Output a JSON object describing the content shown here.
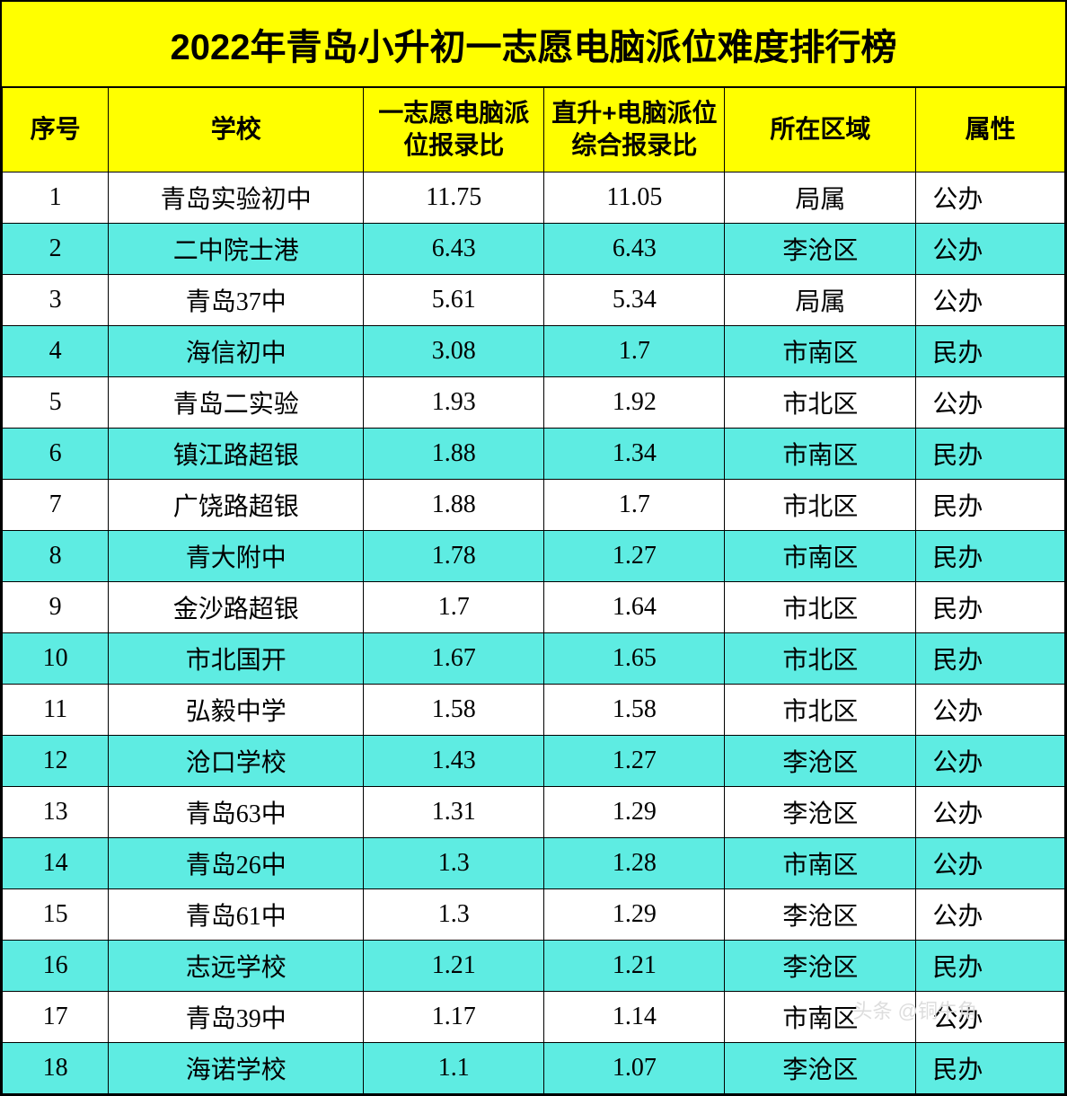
{
  "title": "2022年青岛小升初一志愿电脑派位难度排行榜",
  "watermark": "头条 @铜牛角",
  "styling": {
    "header_bg": "#ffff00",
    "row_odd_bg": "#ffffff",
    "row_even_bg": "#5eece2",
    "border_color": "#000000",
    "title_fontsize": 40,
    "header_fontsize": 28,
    "cell_fontsize": 28,
    "text_color": "#000000",
    "watermark_color": "#dddddd"
  },
  "columns": [
    {
      "key": "index",
      "label": "序号",
      "width": "10%",
      "align": "center"
    },
    {
      "key": "school",
      "label": "学校",
      "width": "24%",
      "align": "center"
    },
    {
      "key": "ratio1",
      "label": "一志愿电脑派位报录比",
      "width": "17%",
      "align": "center"
    },
    {
      "key": "ratio2",
      "label": "直升+电脑派位综合报录比",
      "width": "17%",
      "align": "center"
    },
    {
      "key": "area",
      "label": "所在区域",
      "width": "18%",
      "align": "center"
    },
    {
      "key": "type",
      "label": "属性",
      "width": "14%",
      "align": "left"
    }
  ],
  "rows": [
    {
      "index": "1",
      "school": "青岛实验初中",
      "ratio1": "11.75",
      "ratio2": "11.05",
      "area": "局属",
      "type": "公办"
    },
    {
      "index": "2",
      "school": "二中院士港",
      "ratio1": "6.43",
      "ratio2": "6.43",
      "area": "李沧区",
      "type": "公办"
    },
    {
      "index": "3",
      "school": "青岛37中",
      "ratio1": "5.61",
      "ratio2": "5.34",
      "area": "局属",
      "type": "公办"
    },
    {
      "index": "4",
      "school": "海信初中",
      "ratio1": "3.08",
      "ratio2": "1.7",
      "area": "市南区",
      "type": "民办"
    },
    {
      "index": "5",
      "school": "青岛二实验",
      "ratio1": "1.93",
      "ratio2": "1.92",
      "area": "市北区",
      "type": "公办"
    },
    {
      "index": "6",
      "school": "镇江路超银",
      "ratio1": "1.88",
      "ratio2": "1.34",
      "area": "市南区",
      "type": "民办"
    },
    {
      "index": "7",
      "school": "广饶路超银",
      "ratio1": "1.88",
      "ratio2": "1.7",
      "area": "市北区",
      "type": "民办"
    },
    {
      "index": "8",
      "school": "青大附中",
      "ratio1": "1.78",
      "ratio2": "1.27",
      "area": "市南区",
      "type": "民办"
    },
    {
      "index": "9",
      "school": "金沙路超银",
      "ratio1": "1.7",
      "ratio2": "1.64",
      "area": "市北区",
      "type": "民办"
    },
    {
      "index": "10",
      "school": "市北国开",
      "ratio1": "1.67",
      "ratio2": "1.65",
      "area": "市北区",
      "type": "民办"
    },
    {
      "index": "11",
      "school": "弘毅中学",
      "ratio1": "1.58",
      "ratio2": "1.58",
      "area": "市北区",
      "type": "公办"
    },
    {
      "index": "12",
      "school": "沧口学校",
      "ratio1": "1.43",
      "ratio2": "1.27",
      "area": "李沧区",
      "type": "公办"
    },
    {
      "index": "13",
      "school": "青岛63中",
      "ratio1": "1.31",
      "ratio2": "1.29",
      "area": "李沧区",
      "type": "公办"
    },
    {
      "index": "14",
      "school": "青岛26中",
      "ratio1": "1.3",
      "ratio2": "1.28",
      "area": "市南区",
      "type": "公办"
    },
    {
      "index": "15",
      "school": "青岛61中",
      "ratio1": "1.3",
      "ratio2": "1.29",
      "area": "李沧区",
      "type": "公办"
    },
    {
      "index": "16",
      "school": "志远学校",
      "ratio1": "1.21",
      "ratio2": "1.21",
      "area": "李沧区",
      "type": "民办"
    },
    {
      "index": "17",
      "school": "青岛39中",
      "ratio1": "1.17",
      "ratio2": "1.14",
      "area": "市南区",
      "type": "公办"
    },
    {
      "index": "18",
      "school": "海诺学校",
      "ratio1": "1.1",
      "ratio2": "1.07",
      "area": "李沧区",
      "type": "民办"
    }
  ]
}
